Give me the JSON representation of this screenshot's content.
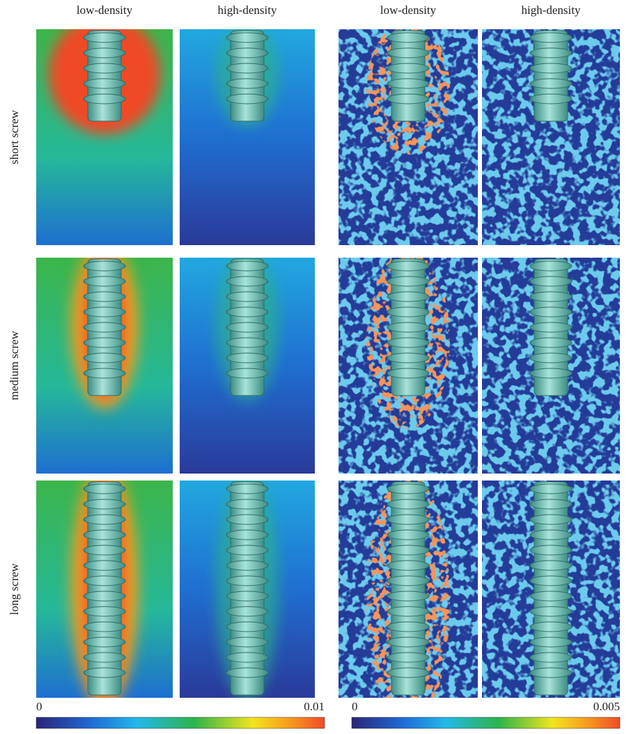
{
  "column_headers": [
    "low-density",
    "high-density",
    "low-density",
    "high-density"
  ],
  "row_labels": [
    "short screw",
    "medium screw",
    "long screw"
  ],
  "colorbars": [
    {
      "min": 0,
      "max": 0.01
    },
    {
      "min": 0,
      "max": 0.005
    }
  ]
}
